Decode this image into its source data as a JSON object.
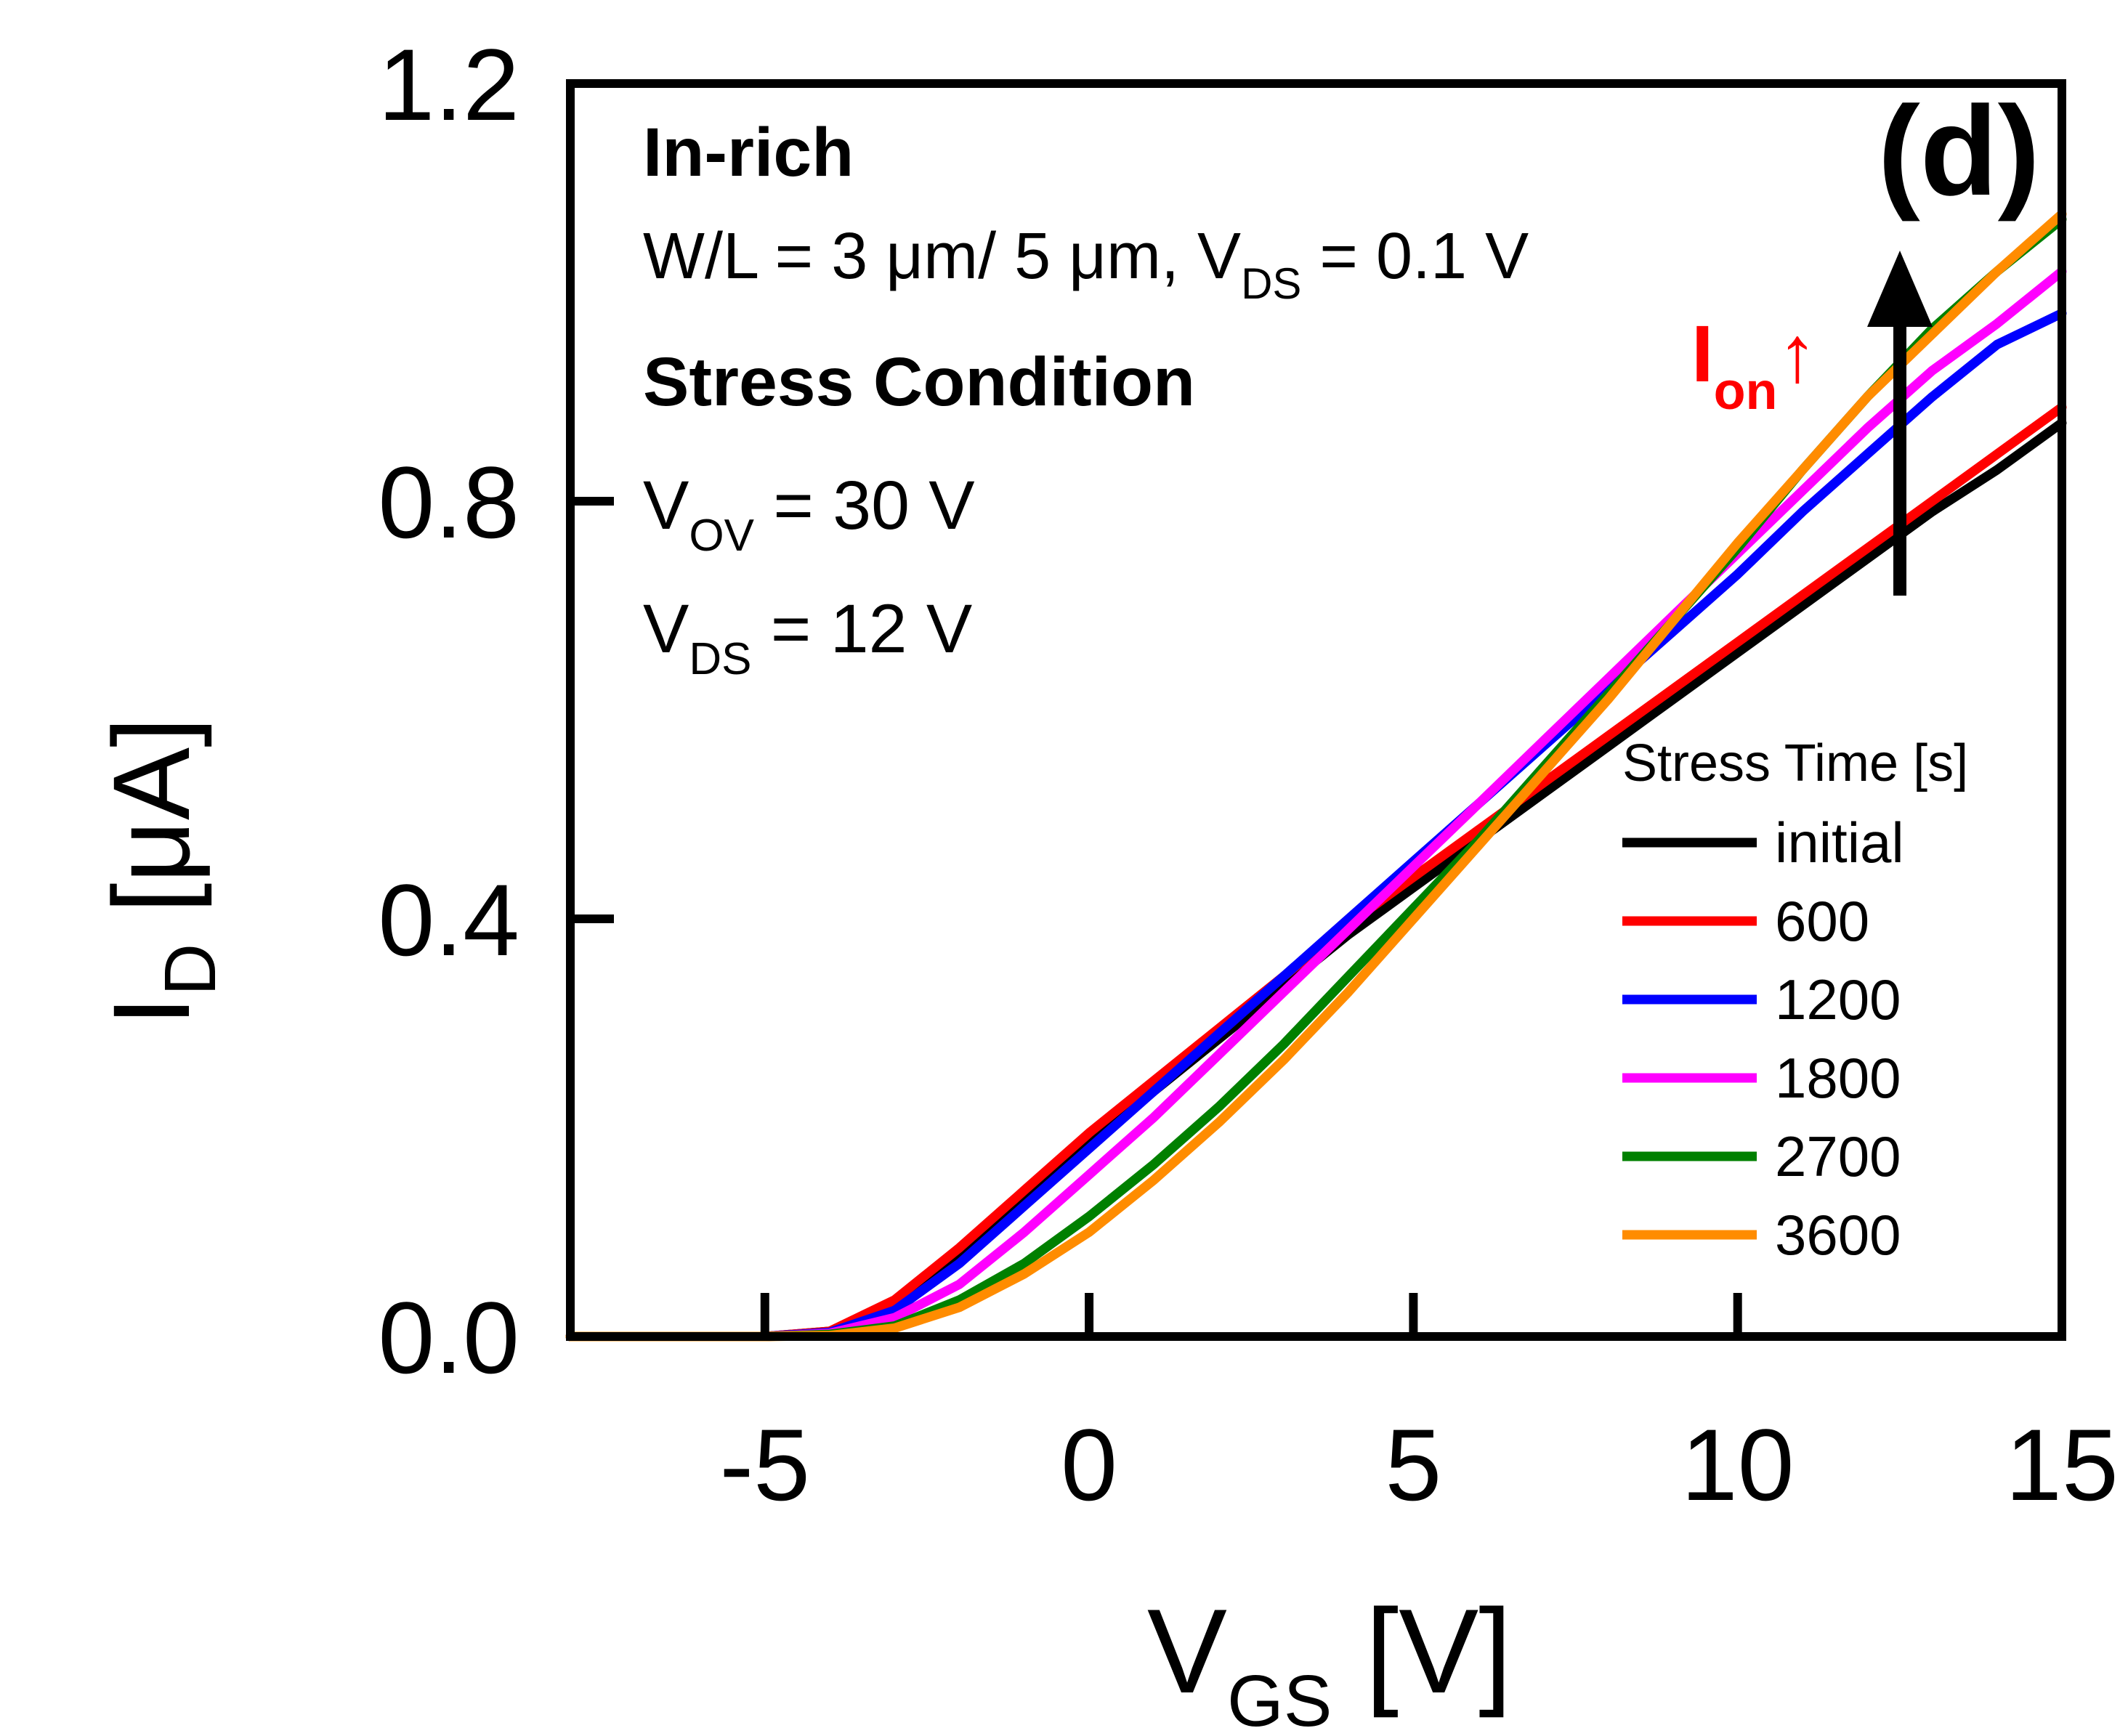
{
  "panel_label": "(d)",
  "annotations": {
    "material": "In-rich",
    "geometry": {
      "prefix": "W/L = 3 μm/ 5 μm, V",
      "sub": "DS",
      "suffix": " = 0.1 V"
    },
    "stress_heading": "Stress Condition",
    "vov": {
      "prefix": "V",
      "sub": "OV",
      "suffix": " = 30 V"
    },
    "vds": {
      "prefix": "V",
      "sub": "DS",
      "suffix": " = 12 V"
    },
    "ion": {
      "prefix": "I",
      "sub": "on",
      "suffix": "↑"
    }
  },
  "legend_title": "Stress Time [s]",
  "colors": {
    "initial": "#000000",
    "600": "#ff0000",
    "1200": "#0000ff",
    "1800": "#ff00ff",
    "2700": "#008000",
    "3600": "#ff8c00",
    "ion_label": "#ff0000"
  },
  "chart_data": {
    "type": "line",
    "xlabel": {
      "main": "V",
      "sub": "GS",
      "unit": " [V]"
    },
    "ylabel": {
      "main": "I",
      "sub": "D",
      "unit": " [μA]"
    },
    "xlim": [
      -8,
      15
    ],
    "ylim": [
      0,
      1.2
    ],
    "xticks": [
      "-5",
      "0",
      "5",
      "10",
      "15"
    ],
    "xtick_values": [
      -5,
      0,
      5,
      10,
      15
    ],
    "yticks": [
      "0.0",
      "0.4",
      "0.8",
      "1.2"
    ],
    "ytick_values": [
      0,
      0.4,
      0.8,
      1.2
    ],
    "grid": false,
    "legend_position": "bottom-right",
    "series": [
      {
        "name": "initial",
        "x": [
          -8,
          -5,
          -4,
          -3,
          -2,
          -1,
          0,
          1,
          2,
          3,
          4,
          5,
          6,
          7,
          8,
          9,
          10,
          11,
          12,
          13,
          14,
          15
        ],
        "y": [
          0,
          0,
          0.005,
          0.03,
          0.075,
          0.13,
          0.185,
          0.235,
          0.285,
          0.335,
          0.385,
          0.43,
          0.475,
          0.52,
          0.565,
          0.61,
          0.655,
          0.7,
          0.745,
          0.79,
          0.83,
          0.875
        ]
      },
      {
        "name": "600",
        "x": [
          -8,
          -5,
          -4,
          -3,
          -2,
          -1,
          0,
          1,
          2,
          3,
          4,
          5,
          6,
          7,
          8,
          9,
          10,
          11,
          12,
          13,
          14,
          15
        ],
        "y": [
          0,
          0,
          0.005,
          0.035,
          0.085,
          0.14,
          0.195,
          0.245,
          0.295,
          0.345,
          0.395,
          0.44,
          0.485,
          0.53,
          0.575,
          0.62,
          0.665,
          0.71,
          0.755,
          0.8,
          0.845,
          0.89
        ]
      },
      {
        "name": "1200",
        "x": [
          -8,
          -5,
          -4,
          -3,
          -2,
          -1,
          0,
          1,
          2,
          3,
          4,
          5,
          6,
          7,
          8,
          9,
          10,
          11,
          12,
          13,
          14,
          15
        ],
        "y": [
          0,
          0,
          0.004,
          0.025,
          0.07,
          0.125,
          0.18,
          0.235,
          0.29,
          0.345,
          0.4,
          0.455,
          0.51,
          0.565,
          0.62,
          0.675,
          0.73,
          0.79,
          0.845,
          0.9,
          0.95,
          0.98
        ]
      },
      {
        "name": "1800",
        "x": [
          -8,
          -5,
          -4,
          -3,
          -2,
          -1,
          0,
          1,
          2,
          3,
          4,
          5,
          6,
          7,
          8,
          9,
          10,
          11,
          12,
          13,
          14,
          15
        ],
        "y": [
          0,
          0,
          0.003,
          0.018,
          0.05,
          0.1,
          0.155,
          0.21,
          0.27,
          0.33,
          0.39,
          0.45,
          0.51,
          0.57,
          0.63,
          0.69,
          0.75,
          0.81,
          0.87,
          0.925,
          0.97,
          1.02
        ]
      },
      {
        "name": "2700",
        "x": [
          -8,
          -5,
          -4,
          -3,
          -2,
          -1,
          0,
          1,
          2,
          3,
          4,
          5,
          6,
          7,
          8,
          9,
          10,
          11,
          12,
          13,
          14,
          15
        ],
        "y": [
          0,
          0,
          0.002,
          0.01,
          0.035,
          0.07,
          0.115,
          0.165,
          0.22,
          0.28,
          0.345,
          0.41,
          0.475,
          0.545,
          0.615,
          0.685,
          0.755,
          0.83,
          0.9,
          0.965,
          1.02,
          1.07
        ]
      },
      {
        "name": "3600",
        "x": [
          -8,
          -5,
          -4,
          -3,
          -2,
          -1,
          0,
          1,
          2,
          3,
          4,
          5,
          6,
          7,
          8,
          9,
          10,
          11,
          12,
          13,
          14,
          15
        ],
        "y": [
          0,
          0,
          0.001,
          0.008,
          0.028,
          0.06,
          0.1,
          0.15,
          0.205,
          0.265,
          0.33,
          0.4,
          0.47,
          0.54,
          0.61,
          0.685,
          0.76,
          0.83,
          0.9,
          0.96,
          1.02,
          1.075
        ]
      }
    ]
  }
}
